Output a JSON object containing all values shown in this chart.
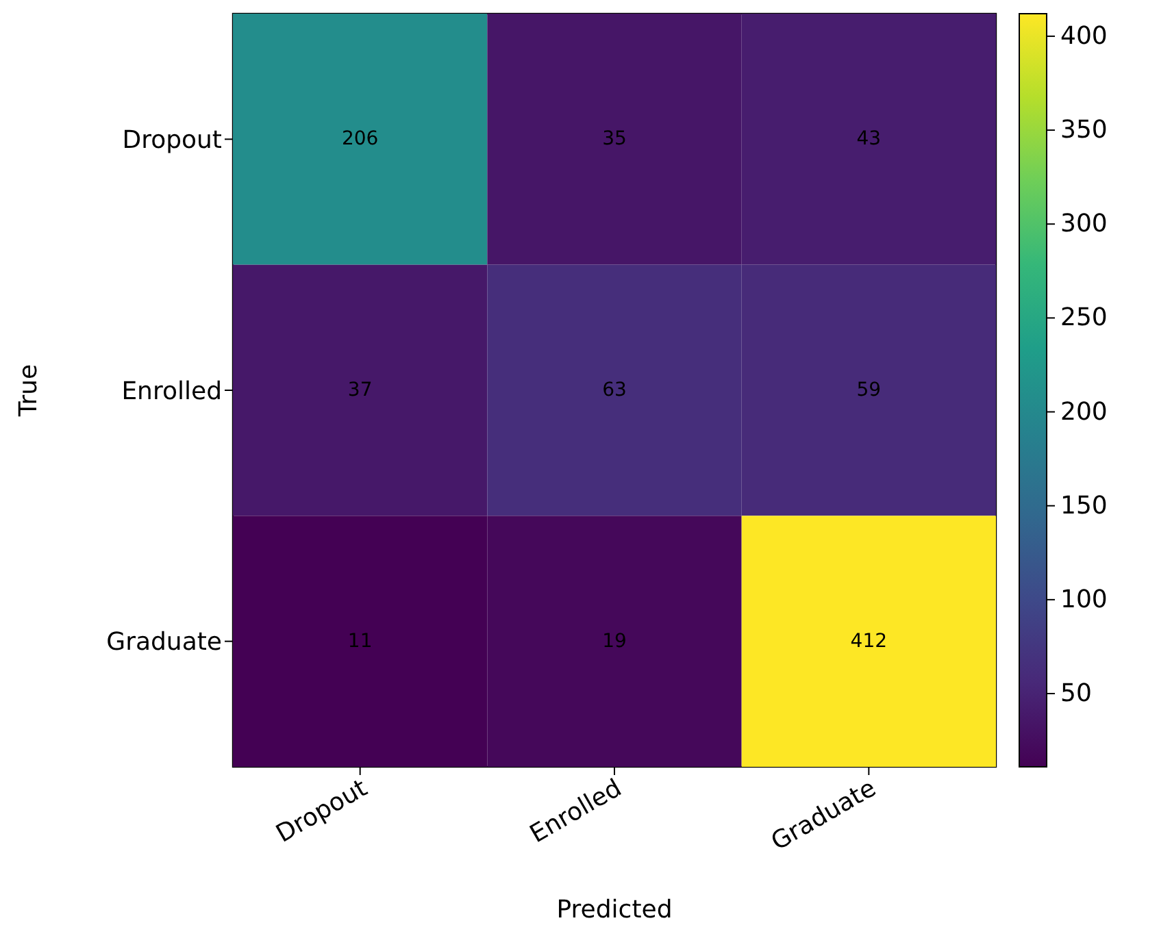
{
  "chart_data": {
    "type": "heatmap",
    "xlabel": "Predicted",
    "ylabel": "True",
    "categories": [
      "Dropout",
      "Enrolled",
      "Graduate"
    ],
    "y_categories": [
      "Dropout",
      "Enrolled",
      "Graduate"
    ],
    "cells": [
      [
        206,
        35,
        43
      ],
      [
        37,
        63,
        59
      ],
      [
        11,
        19,
        412
      ]
    ],
    "data_labels": true,
    "clim": [
      11,
      412
    ],
    "cticks": [
      50,
      100,
      150,
      200,
      250,
      300,
      350,
      400
    ]
  }
}
